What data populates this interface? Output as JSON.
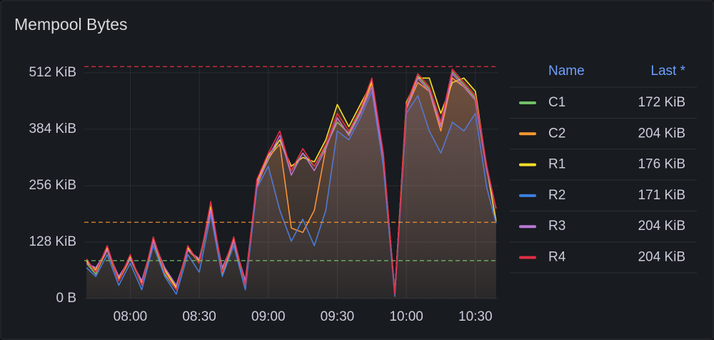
{
  "chart_data": {
    "type": "line",
    "title": "Mempool Bytes",
    "x": [
      "07:41",
      "07:45",
      "07:50",
      "07:55",
      "08:00",
      "08:05",
      "08:10",
      "08:15",
      "08:20",
      "08:25",
      "08:30",
      "08:35",
      "08:40",
      "08:45",
      "08:50",
      "08:55",
      "09:00",
      "09:05",
      "09:10",
      "09:15",
      "09:20",
      "09:25",
      "09:30",
      "09:35",
      "09:40",
      "09:45",
      "09:50",
      "09:55",
      "10:00",
      "10:05",
      "10:10",
      "10:15",
      "10:20",
      "10:25",
      "10:30",
      "10:35",
      "10:39"
    ],
    "xlim": [
      "07:40",
      "10:40"
    ],
    "xticks": [
      "08:00",
      "08:30",
      "09:00",
      "09:30",
      "10:00",
      "10:30"
    ],
    "ylim": [
      0,
      528
    ],
    "yticks": [
      {
        "value": 0,
        "label": "0 B"
      },
      {
        "value": 128,
        "label": "128 KiB"
      },
      {
        "value": 256,
        "label": "256 KiB"
      },
      {
        "value": 384,
        "label": "384 KiB"
      },
      {
        "value": 512,
        "label": "512 KiB"
      }
    ],
    "grid": true,
    "thresholds": [
      {
        "value": 526,
        "color": "#e02f44"
      },
      {
        "value": 173,
        "color": "#ff9830"
      },
      {
        "value": 86,
        "color": "#73bf69"
      }
    ],
    "legend_columns": [
      "Name",
      "Last *"
    ],
    "series": [
      {
        "name": "C1",
        "color": "#73bf69",
        "last_label": "172 KiB",
        "values": [
          80,
          55,
          115,
          45,
          95,
          30,
          130,
          55,
          20,
          115,
          80,
          205,
          55,
          130,
          30,
          260,
          315,
          360,
          290,
          330,
          300,
          345,
          400,
          375,
          425,
          495,
          325,
          10,
          435,
          505,
          475,
          395,
          515,
          485,
          455,
          295,
          172
        ]
      },
      {
        "name": "C2",
        "color": "#ff9830",
        "last_label": "204 KiB",
        "values": [
          85,
          60,
          110,
          40,
          90,
          35,
          130,
          60,
          25,
          110,
          85,
          210,
          60,
          130,
          35,
          255,
          320,
          350,
          160,
          150,
          200,
          340,
          410,
          370,
          420,
          490,
          320,
          10,
          430,
          490,
          470,
          380,
          500,
          480,
          450,
          290,
          204
        ]
      },
      {
        "name": "R1",
        "color": "#fade2a",
        "last_label": "176 KiB",
        "values": [
          85,
          65,
          115,
          45,
          95,
          35,
          135,
          65,
          25,
          115,
          85,
          210,
          65,
          135,
          35,
          265,
          325,
          360,
          300,
          320,
          310,
          360,
          440,
          390,
          440,
          490,
          325,
          12,
          445,
          500,
          500,
          420,
          490,
          500,
          470,
          295,
          176
        ]
      },
      {
        "name": "R2",
        "color": "#3d7fe0",
        "last_label": "171 KiB",
        "values": [
          70,
          50,
          100,
          30,
          80,
          20,
          120,
          50,
          10,
          100,
          60,
          190,
          50,
          120,
          20,
          250,
          300,
          200,
          130,
          180,
          120,
          200,
          380,
          360,
          410,
          470,
          300,
          5,
          420,
          460,
          380,
          330,
          400,
          380,
          420,
          250,
          171
        ]
      },
      {
        "name": "R3",
        "color": "#b877d9",
        "last_label": "204 KiB",
        "values": [
          80,
          70,
          110,
          50,
          90,
          40,
          130,
          70,
          30,
          110,
          90,
          200,
          70,
          130,
          40,
          260,
          320,
          370,
          280,
          330,
          290,
          340,
          410,
          370,
          420,
          480,
          320,
          15,
          430,
          500,
          470,
          390,
          510,
          480,
          450,
          290,
          204
        ]
      },
      {
        "name": "R4",
        "color": "#e02f44",
        "last_label": "204 KiB",
        "values": [
          90,
          60,
          120,
          40,
          100,
          30,
          140,
          60,
          20,
          120,
          80,
          220,
          60,
          140,
          30,
          270,
          330,
          380,
          290,
          340,
          300,
          350,
          420,
          380,
          430,
          500,
          330,
          10,
          440,
          510,
          480,
          400,
          520,
          490,
          460,
          300,
          204
        ]
      }
    ]
  }
}
